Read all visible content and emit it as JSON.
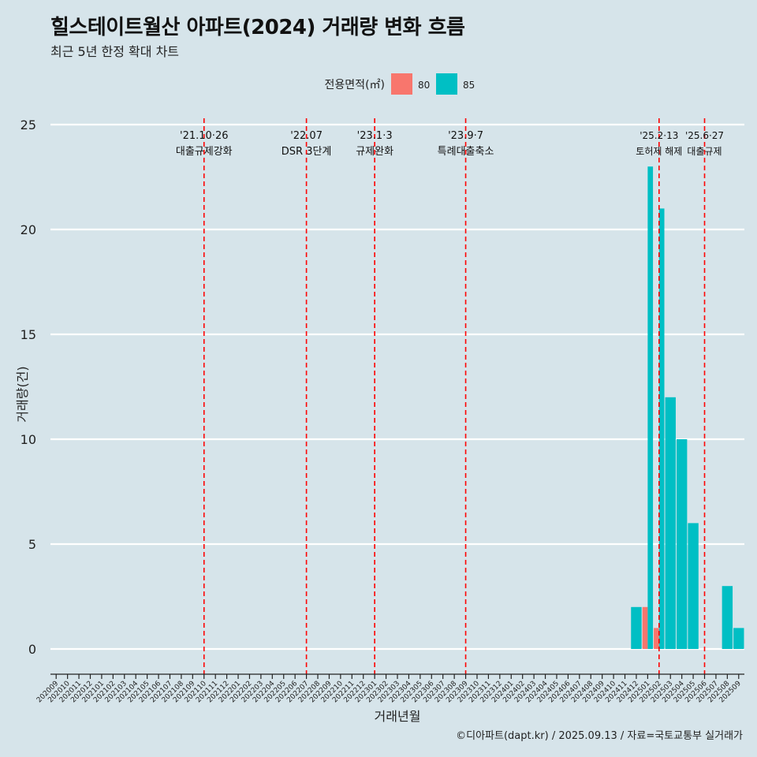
{
  "header": {
    "title": "힐스테이트월산 아파트(2024) 거래량 변화 흐름",
    "subtitle": "최근 5년 한정 확대 차트"
  },
  "footer": {
    "caption": "©디아파트(dapt.kr) / 2025.09.13 / 자료=국토교통부 실거래가"
  },
  "colors": {
    "background": "#d6e4ea",
    "series_80": "#f8766d",
    "series_85": "#00bfc4",
    "event_line": "#ff0000",
    "grid": "#ffffff"
  },
  "chart_data": {
    "type": "bar",
    "title": "힐스테이트월산 아파트(2024) 거래량 변화 흐름",
    "subtitle": "최근 5년 한정 확대 차트",
    "xlabel": "거래년월",
    "ylabel": "거래량(건)",
    "ylim": [
      0,
      25
    ],
    "yticks": [
      0,
      5,
      10,
      15,
      20,
      25
    ],
    "grid": true,
    "legend": {
      "title": "전용면적(㎡)",
      "position": "top",
      "entries": [
        {
          "label": "80",
          "color": "#f8766d"
        },
        {
          "label": "85",
          "color": "#00bfc4"
        }
      ]
    },
    "categories": [
      "202009",
      "202010",
      "202011",
      "202012",
      "202101",
      "202102",
      "202103",
      "202104",
      "202105",
      "202106",
      "202107",
      "202108",
      "202109",
      "202110",
      "202111",
      "202112",
      "202201",
      "202202",
      "202203",
      "202204",
      "202205",
      "202206",
      "202207",
      "202208",
      "202209",
      "202210",
      "202211",
      "202212",
      "202301",
      "202302",
      "202303",
      "202304",
      "202305",
      "202306",
      "202307",
      "202308",
      "202309",
      "202310",
      "202311",
      "202312",
      "202401",
      "202402",
      "202403",
      "202404",
      "202405",
      "202406",
      "202407",
      "202408",
      "202409",
      "202410",
      "202411",
      "202412",
      "202501",
      "202502",
      "202503",
      "202504",
      "202505",
      "202506",
      "202507",
      "202508",
      "202509"
    ],
    "series": [
      {
        "name": "80",
        "color": "#f8766d",
        "points": [
          {
            "x": "202501",
            "y": 2
          },
          {
            "x": "202502",
            "y": 1
          }
        ]
      },
      {
        "name": "85",
        "color": "#00bfc4",
        "points": [
          {
            "x": "202412",
            "y": 2
          },
          {
            "x": "202501",
            "y": 23
          },
          {
            "x": "202502",
            "y": 21
          },
          {
            "x": "202503",
            "y": 12
          },
          {
            "x": "202504",
            "y": 10
          },
          {
            "x": "202505",
            "y": 6
          },
          {
            "x": "202508",
            "y": 3
          },
          {
            "x": "202509",
            "y": 1
          }
        ]
      }
    ],
    "events": [
      {
        "x": "202110",
        "date": "'21.10·26",
        "label": "대출규제강화"
      },
      {
        "x": "202207",
        "date": "'22.07",
        "label": "DSR 3단계"
      },
      {
        "x": "202301",
        "date": "'23.1·3",
        "label": "규제완화"
      },
      {
        "x": "202309",
        "date": "'23.9·7",
        "label": "특례대출축소"
      },
      {
        "x": "202502",
        "date": "'25.2·13",
        "label": "토허제 해제"
      },
      {
        "x": "202506",
        "date": "'25.6·27",
        "label": "대출규제"
      }
    ]
  }
}
